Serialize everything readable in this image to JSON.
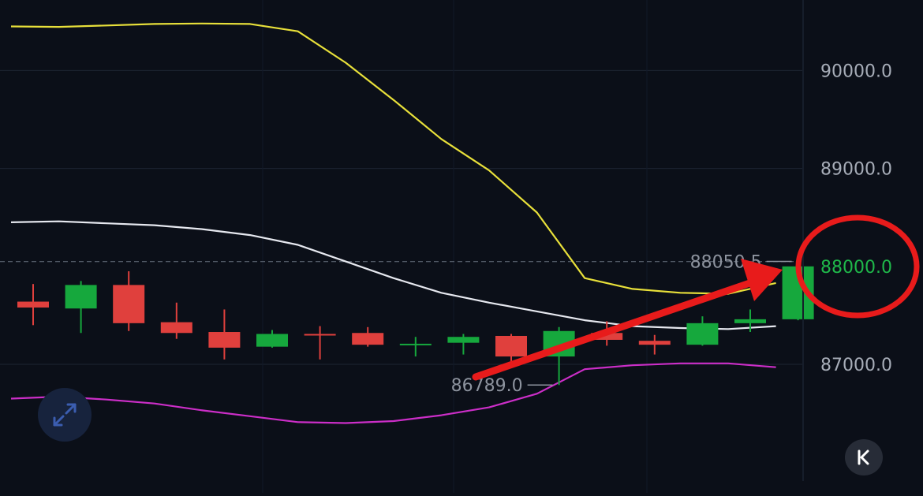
{
  "chart_data": {
    "type": "candlestick",
    "title": "",
    "xlabel": "",
    "ylabel": "",
    "ylim": [
      86000,
      90500
    ],
    "y_ticks": [
      "90000.0",
      "89000.0",
      "88000.0",
      "87000.0"
    ],
    "x_tick_labels": [
      "",
      "",
      "",
      "",
      ""
    ],
    "highlighted_tick": "88000.0",
    "candles": [
      {
        "open": 87640,
        "close": 87580,
        "high": 87820,
        "low": 87400
      },
      {
        "open": 87570,
        "close": 87810,
        "high": 87850,
        "low": 87320
      },
      {
        "open": 87810,
        "close": 87420,
        "high": 87950,
        "low": 87340
      },
      {
        "open": 87430,
        "close": 87320,
        "high": 87630,
        "low": 87260
      },
      {
        "open": 87330,
        "close": 87170,
        "high": 87560,
        "low": 87050
      },
      {
        "open": 87180,
        "close": 87310,
        "high": 87350,
        "low": 87170
      },
      {
        "open": 87310,
        "close": 87300,
        "high": 87390,
        "low": 87050
      },
      {
        "open": 87320,
        "close": 87200,
        "high": 87380,
        "low": 87180
      },
      {
        "open": 87210,
        "close": 87210,
        "high": 87280,
        "low": 87080
      },
      {
        "open": 87220,
        "close": 87280,
        "high": 87310,
        "low": 87100
      },
      {
        "open": 87290,
        "close": 87080,
        "high": 87310,
        "low": 86990
      },
      {
        "open": 87080,
        "close": 87340,
        "high": 87380,
        "low": 86789
      },
      {
        "open": 87320,
        "close": 87250,
        "high": 87440,
        "low": 87190
      },
      {
        "open": 87240,
        "close": 87200,
        "high": 87300,
        "low": 87100
      },
      {
        "open": 87200,
        "close": 87420,
        "high": 87490,
        "low": 87190
      },
      {
        "open": 87420,
        "close": 87460,
        "high": 87560,
        "low": 87330
      },
      {
        "open": 87460,
        "close": 88000,
        "high": 88050.5,
        "low": 87450
      }
    ],
    "series": [
      {
        "name": "",
        "color": "#e8e03a",
        "values": [
          90450,
          90445,
          90460,
          90475,
          90480,
          90475,
          90400,
          90080,
          89700,
          89300,
          88980,
          88550,
          87880,
          87770,
          87730,
          87720,
          87830
        ]
      },
      {
        "name": "",
        "color": "#e6e8ef",
        "values": [
          88450,
          88460,
          88440,
          88420,
          88380,
          88320,
          88220,
          88050,
          87880,
          87730,
          87630,
          87540,
          87450,
          87390,
          87370,
          87360,
          87390
        ]
      },
      {
        "name": "",
        "color": "#cc2ec8",
        "values": [
          86650,
          86670,
          86640,
          86600,
          86530,
          86470,
          86410,
          86400,
          86420,
          86480,
          86560,
          86700,
          86950,
          86990,
          87010,
          87010,
          86970
        ]
      }
    ],
    "last_price": "88000.0",
    "annotations": [
      {
        "text": "88050.5",
        "value": 88050.5,
        "candle_index": 16
      },
      {
        "text": "86789.0",
        "value": 86789,
        "candle_index": 11
      }
    ],
    "colors": {
      "up": "#16a83d",
      "down": "#e0403d",
      "background": "#0b0f18",
      "grid": "#1c2432",
      "arrow": "#e81b1b",
      "circle": "#e81b1b"
    }
  }
}
